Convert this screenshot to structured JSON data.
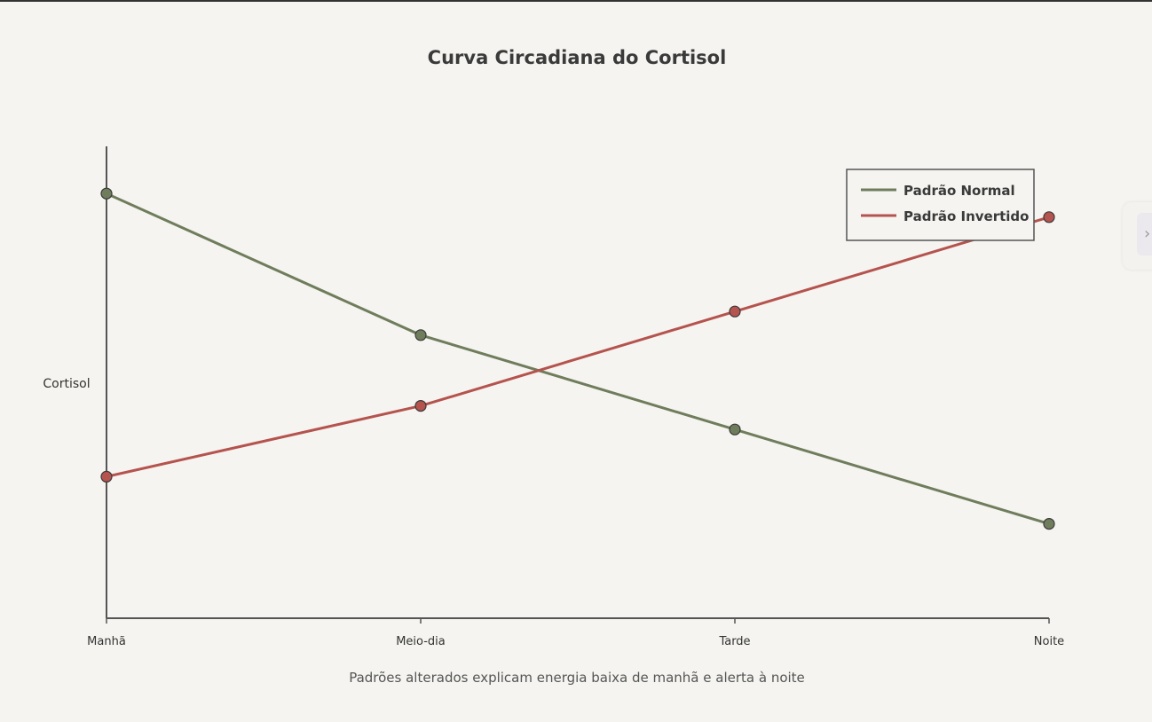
{
  "chart_data": {
    "type": "line",
    "title": "Curva Circadiana do Cortisol",
    "xlabel": "Padrões alterados explicam energia baixa de manhã e alerta à noite",
    "ylabel": "Cortisol",
    "categories": [
      "Manhã",
      "Meio-dia",
      "Tarde",
      "Noite"
    ],
    "ylim": [
      0,
      10
    ],
    "grid": false,
    "legend_placement": "top-right",
    "series": [
      {
        "name": "Padrão Normal",
        "color": "#6f7d5c",
        "values": [
          9.0,
          6.0,
          4.0,
          2.0
        ]
      },
      {
        "name": "Padrão Invertido",
        "color": "#b5534e",
        "values": [
          3.0,
          4.5,
          6.5,
          8.5
        ]
      }
    ]
  },
  "side_panel": {
    "toggle_icon": "chevron-right-icon",
    "toggle_glyph": "›"
  }
}
